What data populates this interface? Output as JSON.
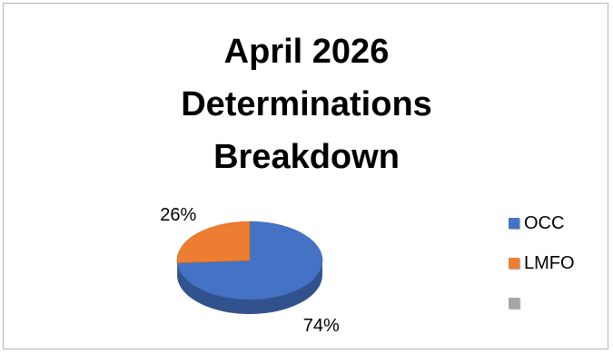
{
  "chart_data": {
    "type": "pie",
    "title_lines": [
      "April 2026",
      "Determinations",
      "Breakdown"
    ],
    "slices": [
      {
        "name": "OCC",
        "value": 74,
        "label": "74%",
        "color": "#4472c4"
      },
      {
        "name": "LMFO",
        "value": 26,
        "label": "26%",
        "color": "#ed7d31"
      },
      {
        "name": "",
        "value": 0,
        "label": "",
        "color": "#a5a5a5"
      }
    ],
    "legend_position": "right",
    "style": "3d"
  }
}
